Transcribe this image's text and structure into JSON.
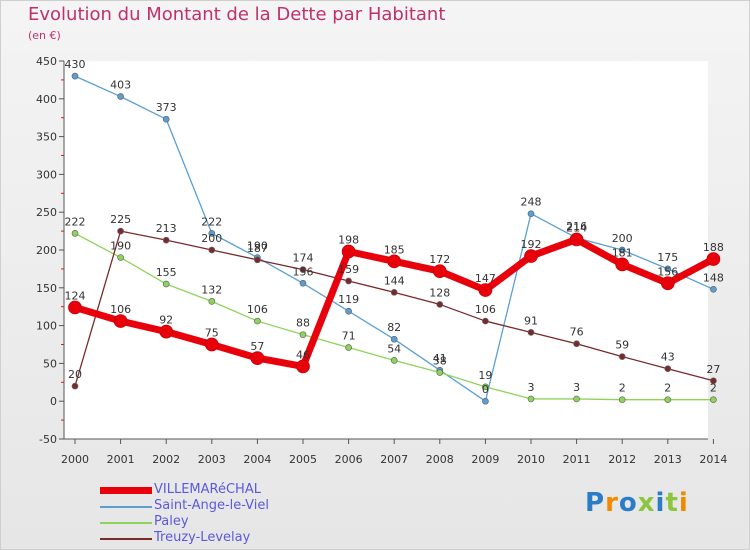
{
  "title": "Evolution du Montant de la Dette par Habitant",
  "subtitle": "(en €)",
  "logo": {
    "text": "Proxiti",
    "colors": [
      "#2a7cc7",
      "#f08a00",
      "#2a7cc7",
      "#8cc63f",
      "#2a7cc7",
      "#8cc63f",
      "#f08a00"
    ]
  },
  "chart_data": {
    "type": "line",
    "x": [
      "2000",
      "2001",
      "2002",
      "2003",
      "2004",
      "2005",
      "2006",
      "2007",
      "2008",
      "2009",
      "2010",
      "2011",
      "2012",
      "2013",
      "2014"
    ],
    "ylim": [
      -50,
      450
    ],
    "yticks": [
      -50,
      0,
      50,
      100,
      150,
      200,
      250,
      300,
      350,
      400,
      450
    ],
    "grid": false,
    "legend_position": "bottom-left",
    "series": [
      {
        "name": "VILLEMARéCHAL",
        "color": "#e8000b",
        "values": [
          124,
          106,
          92,
          75,
          57,
          46,
          198,
          185,
          172,
          147,
          192,
          214,
          181,
          156,
          188
        ],
        "labels": [
          "124",
          "106",
          "92",
          "75",
          "57",
          "46",
          "198",
          "185",
          "172",
          "147",
          "192",
          "214",
          "181",
          "156",
          "188"
        ]
      },
      {
        "name": "Saint-Ange-le-Viel",
        "color": "#5a9fd4",
        "values": [
          430,
          403,
          373,
          222,
          190,
          156,
          119,
          82,
          41,
          0,
          248,
          216,
          200,
          175,
          148
        ],
        "labels": [
          "430",
          "403",
          "373",
          "222",
          "190",
          "156",
          "119",
          "82",
          "41",
          "0",
          "248",
          "216",
          "200",
          "175",
          "148"
        ]
      },
      {
        "name": "Paley",
        "color": "#8ed45a",
        "values": [
          222,
          190,
          155,
          132,
          106,
          88,
          71,
          54,
          38,
          19,
          3,
          3,
          2,
          2,
          2
        ],
        "labels": [
          "222",
          "190",
          "155",
          "132",
          "106",
          "88",
          "71",
          "54",
          "38",
          "19",
          "3",
          "3",
          "2",
          "2",
          "2"
        ]
      },
      {
        "name": "Treuzy-Levelay",
        "color": "#7a2a2a",
        "values": [
          20,
          225,
          213,
          200,
          187,
          174,
          159,
          144,
          128,
          106,
          91,
          76,
          59,
          43,
          27
        ],
        "labels": [
          "20",
          "225",
          "213",
          "200",
          "187",
          "174",
          "159",
          "144",
          "128",
          "106",
          "91",
          "76",
          "59",
          "43",
          "27"
        ]
      }
    ]
  }
}
